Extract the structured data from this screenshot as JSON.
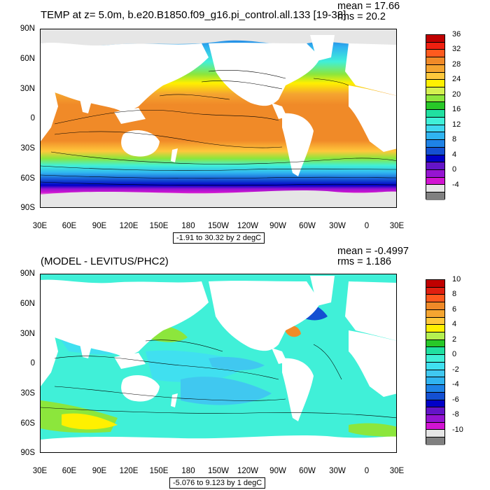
{
  "panels": [
    {
      "title": "TEMP at z=   5.0m, b.e20.B1850.f09_g16.pi_control.all.133 [19-38]",
      "mean_text": "mean = 17.66",
      "rms_text": "rms = 20.2",
      "range_text": "-1.91 to 30.32 by 2 degC",
      "lat_labels": [
        "90N",
        "60N",
        "30N",
        "0",
        "30S",
        "60S",
        "90S"
      ],
      "lon_labels": [
        "30E",
        "60E",
        "90E",
        "120E",
        "150E",
        "180",
        "150W",
        "120W",
        "90W",
        "60W",
        "30W",
        "0",
        "30E"
      ],
      "colorbar_labels": [
        "36",
        "32",
        "28",
        "24",
        "20",
        "16",
        "12",
        "8",
        "4",
        "0",
        "-4"
      ],
      "colorbar_colors": [
        "#c00000",
        "#f02010",
        "#ff5a1e",
        "#f08a28",
        "#f5a530",
        "#ffc83c",
        "#fff000",
        "#d4f050",
        "#8ce63c",
        "#28c828",
        "#20e0a0",
        "#40f0d8",
        "#40d8f0",
        "#30b4f0",
        "#1e82e6",
        "#1450d2",
        "#0000c8",
        "#6414c8",
        "#9614d2",
        "#d214d2",
        "#e6e6e6",
        "#808080"
      ],
      "colorbar_range": [
        -4,
        36
      ]
    },
    {
      "title": "(MODEL - LEVITUS/PHC2)",
      "mean_text": "mean = -0.4997",
      "rms_text": "rms = 1.186",
      "range_text": "-5.076 to 9.123 by 1 degC",
      "lat_labels": [
        "90N",
        "60N",
        "30N",
        "0",
        "30S",
        "60S",
        "90S"
      ],
      "lon_labels": [
        "30E",
        "60E",
        "90E",
        "120E",
        "150E",
        "180",
        "150W",
        "120W",
        "90W",
        "60W",
        "30W",
        "0",
        "30E"
      ],
      "colorbar_labels": [
        "10",
        "8",
        "6",
        "4",
        "2",
        "0",
        "-2",
        "-4",
        "-6",
        "-8",
        "-10"
      ],
      "colorbar_colors": [
        "#c00000",
        "#e02010",
        "#ff5a1e",
        "#f08a28",
        "#f5a530",
        "#ffc83c",
        "#fff000",
        "#b4f050",
        "#28c828",
        "#20e0a0",
        "#40f0d8",
        "#40e0f0",
        "#40c8f0",
        "#30b4f0",
        "#1e82e6",
        "#1450d2",
        "#0000c8",
        "#6414c8",
        "#9614d2",
        "#d214d2",
        "#e6e6e6",
        "#808080"
      ],
      "colorbar_range": [
        -10,
        10
      ]
    }
  ]
}
